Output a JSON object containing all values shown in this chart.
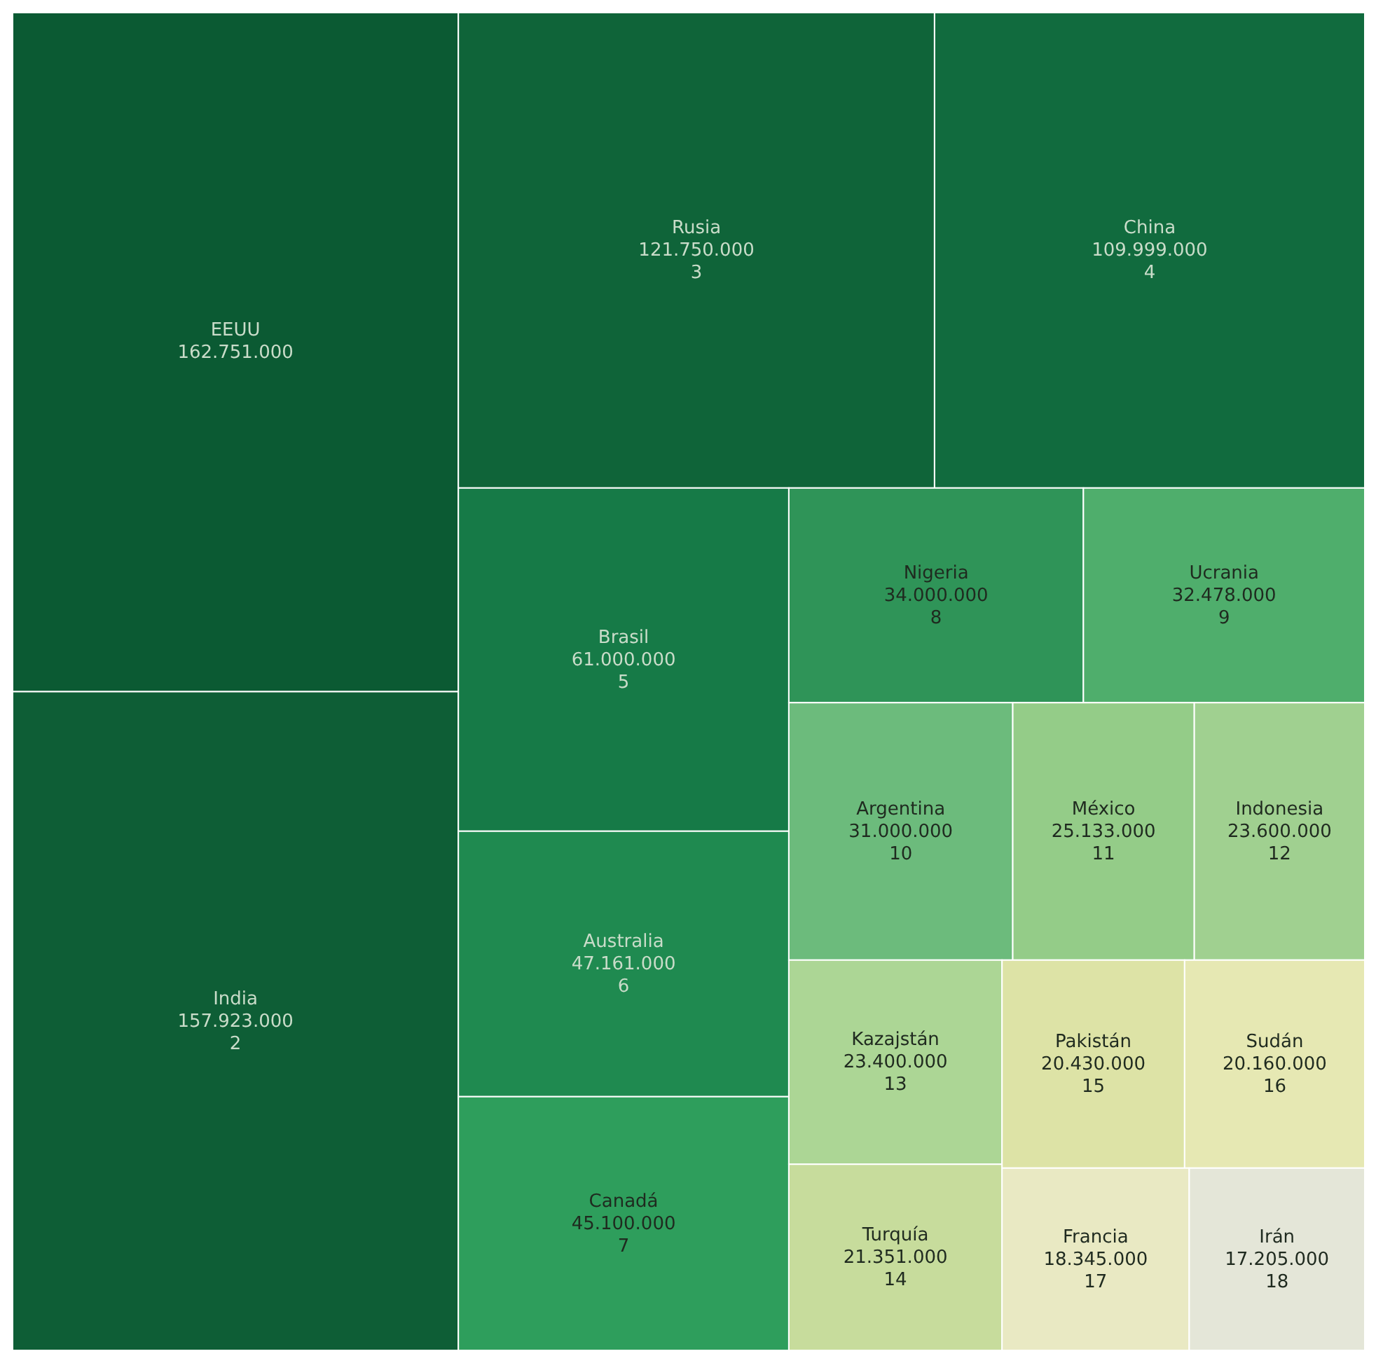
{
  "chart_data": {
    "type": "other",
    "categories": [
      "EEUU",
      "India",
      "Rusia",
      "China",
      "Brasil",
      "Australia",
      "Canadá",
      "Nigeria",
      "Ucrania",
      "Argentina",
      "México",
      "Indonesia",
      "Kazajstán",
      "Turquía",
      "Pakistán",
      "Sudán",
      "Francia",
      "Irán"
    ],
    "values": [
      162751000,
      157923000,
      121750000,
      109999000,
      61000000,
      47161000,
      45100000,
      34000000,
      32478000,
      31000000,
      25133000,
      23600000,
      23400000,
      21351000,
      20430000,
      20160000,
      18345000,
      17205000
    ],
    "colors": [
      "#0b5a33",
      "#0e5e36",
      "#0f6439",
      "#116b3e",
      "#167a47",
      "#1f8a50",
      "#2e9e5c",
      "#2f9458",
      "#4fae6c",
      "#6cbb7c",
      "#94cc88",
      "#a0d090",
      "#acd695",
      "#c7dc9c",
      "#dde3a6",
      "#e6e8b3",
      "#e9e9c3",
      "#e4e6d8"
    ],
    "value_labels": [
      "162.751.000",
      "157.923.000",
      "121.750.000",
      "109.999.000",
      "61.000.000",
      "47.161.000",
      "45.100.000",
      "34.000.000",
      "32.478.000",
      "31.000.000",
      "25.133.000",
      "23.600.000",
      "23.400.000",
      "21.351.000",
      "20.430.000",
      "20.160.000",
      "18.345.000",
      "17.205.000"
    ],
    "annotations": [
      {
        "text": "2",
        "x": "India"
      },
      {
        "text": "3",
        "x": "Rusia"
      },
      {
        "text": "4",
        "x": "China"
      },
      {
        "text": "5",
        "x": "Brasil"
      },
      {
        "text": "6",
        "x": "Australia"
      },
      {
        "text": "7",
        "x": "Canadá"
      },
      {
        "text": "8",
        "x": "Nigeria"
      },
      {
        "text": "9",
        "x": "Ucrania"
      },
      {
        "text": "10",
        "x": "Argentina"
      },
      {
        "text": "11",
        "x": "México"
      },
      {
        "text": "12",
        "x": "Indonesia"
      },
      {
        "text": "13",
        "x": "Kazajstán"
      },
      {
        "text": "14",
        "x": "Turquía"
      },
      {
        "text": "15",
        "x": "Pakistán"
      },
      {
        "text": "16",
        "x": "Sudán"
      },
      {
        "text": "17",
        "x": "Francia"
      },
      {
        "text": "18",
        "x": "Irán"
      }
    ]
  }
}
